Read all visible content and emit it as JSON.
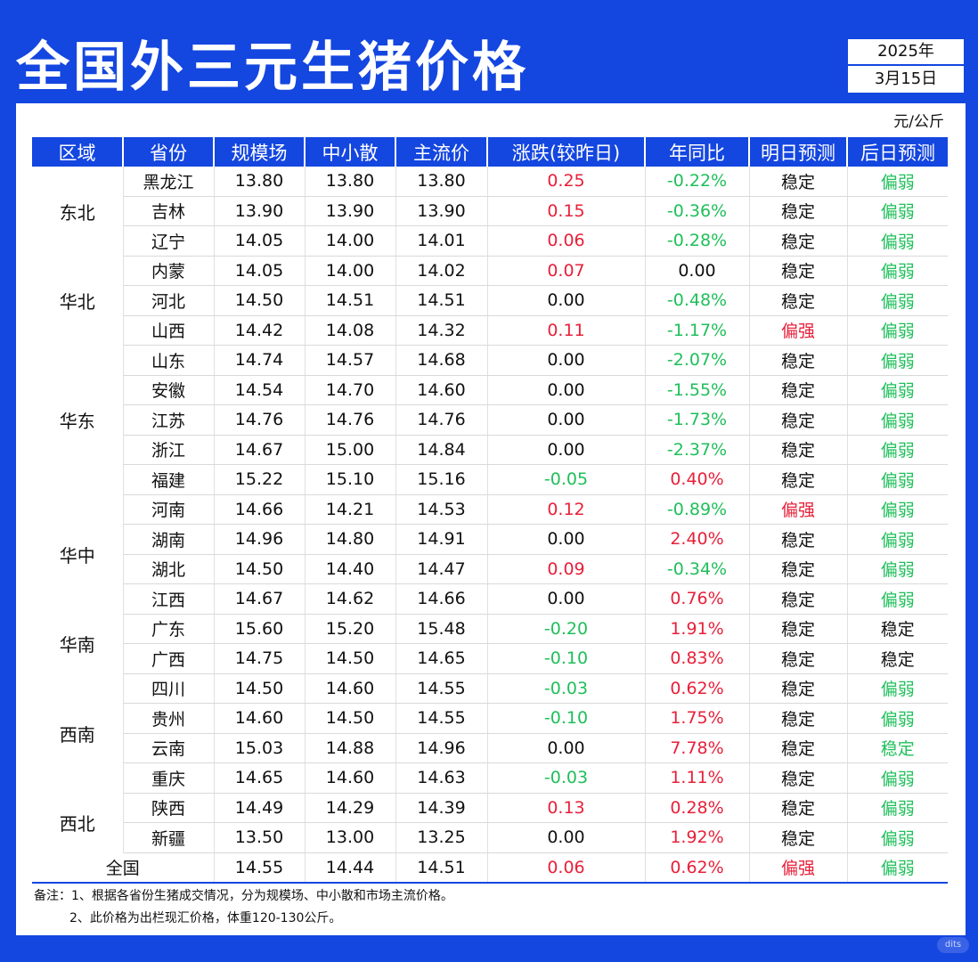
{
  "title": "全国外三元生猪价格",
  "date": {
    "year": "2025年",
    "month_day": "3月15日"
  },
  "unit": "元/公斤",
  "headers": [
    "区域",
    "省份",
    "规模场",
    "中小散",
    "主流价",
    "涨跌(较昨日)",
    "年同比",
    "明日预测",
    "后日预测"
  ],
  "rows": [
    {
      "region": "东北",
      "span": 3,
      "province": "黑龙江",
      "large": "13.80",
      "small": "13.80",
      "main": "13.80",
      "change": "0.25",
      "change_color": "red",
      "yoy": "-0.22%",
      "yoy_color": "green",
      "tomorrow": "稳定",
      "tomorrow_color": "black",
      "after": "偏弱",
      "after_color": "green"
    },
    {
      "province": "吉林",
      "large": "13.90",
      "small": "13.90",
      "main": "13.90",
      "change": "0.15",
      "change_color": "red",
      "yoy": "-0.36%",
      "yoy_color": "green",
      "tomorrow": "稳定",
      "tomorrow_color": "black",
      "after": "偏弱",
      "after_color": "green"
    },
    {
      "province": "辽宁",
      "large": "14.05",
      "small": "14.00",
      "main": "14.01",
      "change": "0.06",
      "change_color": "red",
      "yoy": "-0.28%",
      "yoy_color": "green",
      "tomorrow": "稳定",
      "tomorrow_color": "black",
      "after": "偏弱",
      "after_color": "green"
    },
    {
      "region": "华北",
      "span": 3,
      "province": "内蒙",
      "large": "14.05",
      "small": "14.00",
      "main": "14.02",
      "change": "0.07",
      "change_color": "red",
      "yoy": "0.00",
      "yoy_color": "black",
      "tomorrow": "稳定",
      "tomorrow_color": "black",
      "after": "偏弱",
      "after_color": "green"
    },
    {
      "province": "河北",
      "large": "14.50",
      "small": "14.51",
      "main": "14.51",
      "change": "0.00",
      "change_color": "black",
      "yoy": "-0.48%",
      "yoy_color": "green",
      "tomorrow": "稳定",
      "tomorrow_color": "black",
      "after": "偏弱",
      "after_color": "green"
    },
    {
      "province": "山西",
      "large": "14.42",
      "small": "14.08",
      "main": "14.32",
      "change": "0.11",
      "change_color": "red",
      "yoy": "-1.17%",
      "yoy_color": "green",
      "tomorrow": "偏强",
      "tomorrow_color": "red",
      "after": "偏弱",
      "after_color": "green"
    },
    {
      "region": "华东",
      "span": 5,
      "province": "山东",
      "large": "14.74",
      "small": "14.57",
      "main": "14.68",
      "change": "0.00",
      "change_color": "black",
      "yoy": "-2.07%",
      "yoy_color": "green",
      "tomorrow": "稳定",
      "tomorrow_color": "black",
      "after": "偏弱",
      "after_color": "green"
    },
    {
      "province": "安徽",
      "large": "14.54",
      "small": "14.70",
      "main": "14.60",
      "change": "0.00",
      "change_color": "black",
      "yoy": "-1.55%",
      "yoy_color": "green",
      "tomorrow": "稳定",
      "tomorrow_color": "black",
      "after": "偏弱",
      "after_color": "green"
    },
    {
      "province": "江苏",
      "large": "14.76",
      "small": "14.76",
      "main": "14.76",
      "change": "0.00",
      "change_color": "black",
      "yoy": "-1.73%",
      "yoy_color": "green",
      "tomorrow": "稳定",
      "tomorrow_color": "black",
      "after": "偏弱",
      "after_color": "green"
    },
    {
      "province": "浙江",
      "large": "14.67",
      "small": "15.00",
      "main": "14.84",
      "change": "0.00",
      "change_color": "black",
      "yoy": "-2.37%",
      "yoy_color": "green",
      "tomorrow": "稳定",
      "tomorrow_color": "black",
      "after": "偏弱",
      "after_color": "green"
    },
    {
      "province": "福建",
      "large": "15.22",
      "small": "15.10",
      "main": "15.16",
      "change": "-0.05",
      "change_color": "green",
      "yoy": "0.40%",
      "yoy_color": "red",
      "tomorrow": "稳定",
      "tomorrow_color": "black",
      "after": "偏弱",
      "after_color": "green"
    },
    {
      "region": "华中",
      "span": 4,
      "province": "河南",
      "large": "14.66",
      "small": "14.21",
      "main": "14.53",
      "change": "0.12",
      "change_color": "red",
      "yoy": "-0.89%",
      "yoy_color": "green",
      "tomorrow": "偏强",
      "tomorrow_color": "red",
      "after": "偏弱",
      "after_color": "green"
    },
    {
      "province": "湖南",
      "large": "14.96",
      "small": "14.80",
      "main": "14.91",
      "change": "0.00",
      "change_color": "black",
      "yoy": "2.40%",
      "yoy_color": "red",
      "tomorrow": "稳定",
      "tomorrow_color": "black",
      "after": "偏弱",
      "after_color": "green"
    },
    {
      "province": "湖北",
      "large": "14.50",
      "small": "14.40",
      "main": "14.47",
      "change": "0.09",
      "change_color": "red",
      "yoy": "-0.34%",
      "yoy_color": "green",
      "tomorrow": "稳定",
      "tomorrow_color": "black",
      "after": "偏弱",
      "after_color": "green"
    },
    {
      "province": "江西",
      "large": "14.67",
      "small": "14.62",
      "main": "14.66",
      "change": "0.00",
      "change_color": "black",
      "yoy": "0.76%",
      "yoy_color": "red",
      "tomorrow": "稳定",
      "tomorrow_color": "black",
      "after": "偏弱",
      "after_color": "green"
    },
    {
      "region": "华南",
      "span": 2,
      "province": "广东",
      "large": "15.60",
      "small": "15.20",
      "main": "15.48",
      "change": "-0.20",
      "change_color": "green",
      "yoy": "1.91%",
      "yoy_color": "red",
      "tomorrow": "稳定",
      "tomorrow_color": "black",
      "after": "稳定",
      "after_color": "black"
    },
    {
      "province": "广西",
      "large": "14.75",
      "small": "14.50",
      "main": "14.65",
      "change": "-0.10",
      "change_color": "green",
      "yoy": "0.83%",
      "yoy_color": "red",
      "tomorrow": "稳定",
      "tomorrow_color": "black",
      "after": "稳定",
      "after_color": "black"
    },
    {
      "region": "西南",
      "span": 4,
      "province": "四川",
      "large": "14.50",
      "small": "14.60",
      "main": "14.55",
      "change": "-0.03",
      "change_color": "green",
      "yoy": "0.62%",
      "yoy_color": "red",
      "tomorrow": "稳定",
      "tomorrow_color": "black",
      "after": "偏弱",
      "after_color": "green"
    },
    {
      "province": "贵州",
      "large": "14.60",
      "small": "14.50",
      "main": "14.55",
      "change": "-0.10",
      "change_color": "green",
      "yoy": "1.75%",
      "yoy_color": "red",
      "tomorrow": "稳定",
      "tomorrow_color": "black",
      "after": "偏弱",
      "after_color": "green"
    },
    {
      "province": "云南",
      "large": "15.03",
      "small": "14.88",
      "main": "14.96",
      "change": "0.00",
      "change_color": "black",
      "yoy": "7.78%",
      "yoy_color": "red",
      "tomorrow": "稳定",
      "tomorrow_color": "black",
      "after": "稳定",
      "after_color": "green"
    },
    {
      "province": "重庆",
      "large": "14.65",
      "small": "14.60",
      "main": "14.63",
      "change": "-0.03",
      "change_color": "green",
      "yoy": "1.11%",
      "yoy_color": "red",
      "tomorrow": "稳定",
      "tomorrow_color": "black",
      "after": "偏弱",
      "after_color": "green"
    },
    {
      "region": "西北",
      "span": 2,
      "province": "陕西",
      "large": "14.49",
      "small": "14.29",
      "main": "14.39",
      "change": "0.13",
      "change_color": "red",
      "yoy": "0.28%",
      "yoy_color": "red",
      "tomorrow": "稳定",
      "tomorrow_color": "black",
      "after": "偏弱",
      "after_color": "green"
    },
    {
      "province": "新疆",
      "large": "13.50",
      "small": "13.00",
      "main": "13.25",
      "change": "0.00",
      "change_color": "black",
      "yoy": "1.92%",
      "yoy_color": "red",
      "tomorrow": "稳定",
      "tomorrow_color": "black",
      "after": "偏弱",
      "after_color": "green"
    }
  ],
  "total": {
    "label": "全国",
    "large": "14.55",
    "small": "14.44",
    "main": "14.51",
    "change": "0.06",
    "change_color": "red",
    "yoy": "0.62%",
    "yoy_color": "red",
    "tomorrow": "偏强",
    "tomorrow_color": "red",
    "after": "偏弱",
    "after_color": "green"
  },
  "notes": [
    "备注：1、根据各省份生猪成交情况，分为规模场、中小散和市场主流价格。",
    "2、此价格为出栏现汇价格，体重120-130公斤。"
  ],
  "logo_text": "dits",
  "colors": {
    "brand_blue": "#1446e0",
    "up_red": "#e8203a",
    "down_green": "#1fbf5a"
  }
}
